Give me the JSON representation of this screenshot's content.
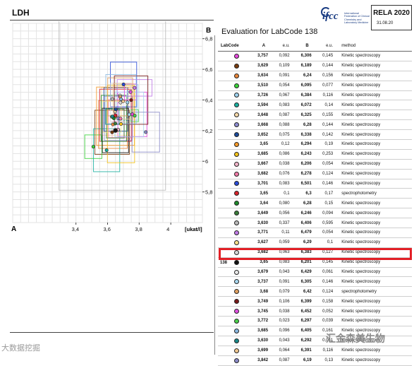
{
  "header": {
    "title": "LDH"
  },
  "logo": {
    "brand": "ifcc",
    "subtitle": "International Federation of Clinical Chemistry and Laboratory Medicine"
  },
  "rela": {
    "title": "RELA 2020",
    "date": "31.08.20"
  },
  "evaluation": {
    "title": "Evaluation for LabCode 138"
  },
  "table": {
    "headers": {
      "labcode": "LabCode",
      "a": "A",
      "eu_a": "e.u.",
      "b": "B",
      "eu_b": "e.u.",
      "method": "method"
    }
  },
  "chart_data": {
    "type": "scatter",
    "xlabel": "[ukat/l]",
    "x_axis_letter": "A",
    "y_axis_letter": "B",
    "xlim": [
      3.0,
      4.2
    ],
    "ylim": [
      5.6,
      6.9
    ],
    "xticks": [
      "3,4",
      "3,6",
      "3,8",
      "4"
    ],
    "yticks": [
      "5,8",
      "6",
      "6,2",
      "6,4",
      "6,6",
      "6,8"
    ],
    "points": [
      {
        "labcode": "",
        "A": "3,757",
        "euA": "0,092",
        "B": "6,306",
        "euB": "0,145",
        "method": "Kinetic spectroscopy",
        "color": "#e64bdc"
      },
      {
        "labcode": "",
        "A": "3,629",
        "euA": "0,109",
        "B": "6,189",
        "euB": "0,144",
        "method": "Kinetic spectroscopy",
        "color": "#7a3d10"
      },
      {
        "labcode": "",
        "A": "3,634",
        "euA": "0,091",
        "B": "6,24",
        "euB": "0,156",
        "method": "Kinetic spectroscopy",
        "color": "#e8863a"
      },
      {
        "labcode": "",
        "A": "3,510",
        "euA": "0,054",
        "B": "6,095",
        "euB": "0,077",
        "method": "Kinetic spectroscopy",
        "color": "#3bd43b"
      },
      {
        "labcode": "",
        "A": "3,726",
        "euA": "0,067",
        "B": "6,384",
        "euB": "0,116",
        "method": "Kinetic spectroscopy",
        "color": "#9dd2ee"
      },
      {
        "labcode": "",
        "A": "3,594",
        "euA": "0,083",
        "B": "6,072",
        "euB": "0,14",
        "method": "Kinetic spectroscopy",
        "color": "#1ab0a0"
      },
      {
        "labcode": "",
        "A": "3,648",
        "euA": "0,087",
        "B": "6,325",
        "euB": "0,155",
        "method": "Kinetic spectroscopy",
        "color": "#f6d9a8"
      },
      {
        "labcode": "",
        "A": "3,668",
        "euA": "0,088",
        "B": "6,28",
        "euB": "0,144",
        "method": "Kinetic spectroscopy",
        "color": "#8c8cd0"
      },
      {
        "labcode": "",
        "A": "3,652",
        "euA": "0,075",
        "B": "6,338",
        "euB": "0,142",
        "method": "Kinetic spectroscopy",
        "color": "#1b4a9a"
      },
      {
        "labcode": "",
        "A": "3,65",
        "euA": "0,12",
        "B": "6,294",
        "euB": "0,19",
        "method": "Kinetic spectroscopy",
        "color": "#f59a2a"
      },
      {
        "labcode": "",
        "A": "3,685",
        "euA": "0,086",
        "B": "6,243",
        "euB": "0,253",
        "method": "Kinetic spectroscopy",
        "color": "#f2c21a"
      },
      {
        "labcode": "",
        "A": "3,667",
        "euA": "0,038",
        "B": "6,206",
        "euB": "0,054",
        "method": "Kinetic spectroscopy",
        "color": "#f0b3c8"
      },
      {
        "labcode": "",
        "A": "3,682",
        "euA": "0,076",
        "B": "6,278",
        "euB": "0,124",
        "method": "Kinetic spectroscopy",
        "color": "#f07aa8"
      },
      {
        "labcode": "",
        "A": "3,701",
        "euA": "0,083",
        "B": "6,501",
        "euB": "0,146",
        "method": "Kinetic spectroscopy",
        "color": "#2a4bd8"
      },
      {
        "labcode": "",
        "A": "3,65",
        "euA": "0,1",
        "B": "6,3",
        "euB": "0,17",
        "method": "spectrophotometry",
        "color": "#d8232a"
      },
      {
        "labcode": "",
        "A": "3,64",
        "euA": "0,080",
        "B": "6,28",
        "euB": "0,15",
        "method": "Kinetic spectroscopy",
        "color": "#1e8a2a"
      },
      {
        "labcode": "",
        "A": "3,649",
        "euA": "0,056",
        "B": "6,246",
        "euB": "0,094",
        "method": "Kinetic spectroscopy",
        "color": "#3a7d3a"
      },
      {
        "labcode": "",
        "A": "3,630",
        "euA": "0,337",
        "B": "6,406",
        "euB": "0,595",
        "method": "Kinetic spectroscopy",
        "color": "#b8b8b8"
      },
      {
        "labcode": "",
        "A": "3,771",
        "euA": "0,11",
        "B": "6,479",
        "euB": "0,054",
        "method": "Kinetic spectroscopy",
        "color": "#c07ae6"
      },
      {
        "labcode": "",
        "A": "3,627",
        "euA": "0,059",
        "B": "6,29",
        "euB": "0,1",
        "method": "Kinetic spectroscopy",
        "color": "#f7e08a"
      },
      {
        "labcode": "",
        "A": "3,682",
        "euA": "0,063",
        "B": "6,383",
        "euB": "0,127",
        "method": "Kinetic spectroscopy",
        "color": "#d6d6d6"
      },
      {
        "labcode": "138",
        "A": "3,65",
        "euA": "0,083",
        "B": "6,201",
        "euB": "0,145",
        "method": "Kinetic spectroscopy",
        "color": "#111111"
      },
      {
        "labcode": "",
        "A": "3,679",
        "euA": "0,043",
        "B": "6,429",
        "euB": "0,061",
        "method": "Kinetic spectroscopy",
        "color": "#e8e8e8"
      },
      {
        "labcode": "",
        "A": "3,737",
        "euA": "0,091",
        "B": "6,305",
        "euB": "0,146",
        "method": "Kinetic spectroscopy",
        "color": "#a8d8f0"
      },
      {
        "labcode": "",
        "A": "3,68",
        "euA": "0,079",
        "B": "6,42",
        "euB": "0,124",
        "method": "spectrophotometry",
        "color": "#e0a060"
      },
      {
        "labcode": "",
        "A": "3,749",
        "euA": "0,106",
        "B": "6,399",
        "euB": "0,158",
        "method": "Kinetic spectroscopy",
        "color": "#7a1a1a"
      },
      {
        "labcode": "",
        "A": "3,745",
        "euA": "0,038",
        "B": "6,452",
        "euB": "0,052",
        "method": "Kinetic spectroscopy",
        "color": "#e050e0"
      },
      {
        "labcode": "",
        "A": "3,772",
        "euA": "0,023",
        "B": "6,297",
        "euB": "0,039",
        "method": "Kinetic spectroscopy",
        "color": "#4ad04a"
      },
      {
        "labcode": "",
        "A": "3,685",
        "euA": "0,096",
        "B": "6,405",
        "euB": "0,161",
        "method": "Kinetic spectroscopy",
        "color": "#8ab8e0"
      },
      {
        "labcode": "",
        "A": "3,630",
        "euA": "0,043",
        "B": "6,292",
        "euB": "0,051",
        "method": "Kinetic spectroscopy",
        "color": "#1a8a8a"
      },
      {
        "labcode": "",
        "A": "3,699",
        "euA": "0,064",
        "B": "6,391",
        "euB": "0,116",
        "method": "Kinetic spectroscopy",
        "color": "#f0c890"
      },
      {
        "labcode": "",
        "A": "3,842",
        "euA": "0,087",
        "B": "6,19",
        "euB": "0,13",
        "method": "Kinetic spectroscopy",
        "color": "#8a8ac8"
      }
    ]
  },
  "watermarks": {
    "left": "大数据挖掘",
    "right": "汇金森美生物"
  }
}
